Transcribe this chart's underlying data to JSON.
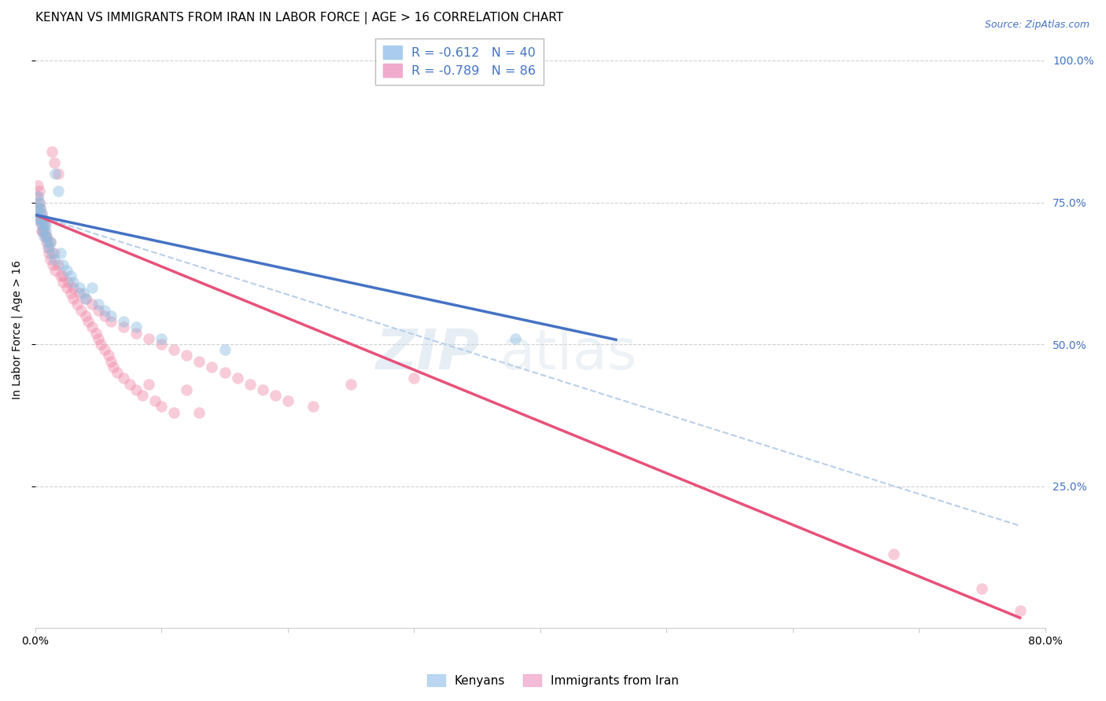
{
  "title": "KENYAN VS IMMIGRANTS FROM IRAN IN LABOR FORCE | AGE > 16 CORRELATION CHART",
  "source": "Source: ZipAtlas.com",
  "ylabel": "In Labor Force | Age > 16",
  "ytick_labels": [
    "100.0%",
    "75.0%",
    "50.0%",
    "25.0%"
  ],
  "ytick_positions": [
    1.0,
    0.75,
    0.5,
    0.25
  ],
  "xlim": [
    0.0,
    0.8
  ],
  "ylim": [
    0.0,
    1.05
  ],
  "legend_entry_blue": "R = -0.612   N = 40",
  "legend_entry_pink": "R = -0.789   N = 86",
  "blue_scatter_x": [
    0.001,
    0.002,
    0.002,
    0.003,
    0.003,
    0.004,
    0.004,
    0.005,
    0.005,
    0.006,
    0.006,
    0.007,
    0.007,
    0.008,
    0.008,
    0.009,
    0.01,
    0.011,
    0.012,
    0.013,
    0.015,
    0.016,
    0.018,
    0.02,
    0.022,
    0.025,
    0.028,
    0.03,
    0.035,
    0.038,
    0.04,
    0.045,
    0.05,
    0.055,
    0.06,
    0.07,
    0.08,
    0.1,
    0.15,
    0.38
  ],
  "blue_scatter_y": [
    0.72,
    0.74,
    0.76,
    0.73,
    0.75,
    0.72,
    0.74,
    0.71,
    0.73,
    0.72,
    0.7,
    0.71,
    0.69,
    0.71,
    0.7,
    0.69,
    0.68,
    0.67,
    0.68,
    0.66,
    0.65,
    0.8,
    0.77,
    0.66,
    0.64,
    0.63,
    0.62,
    0.61,
    0.6,
    0.59,
    0.58,
    0.6,
    0.57,
    0.56,
    0.55,
    0.54,
    0.53,
    0.51,
    0.49,
    0.51
  ],
  "pink_scatter_x": [
    0.001,
    0.002,
    0.002,
    0.003,
    0.003,
    0.004,
    0.004,
    0.005,
    0.005,
    0.006,
    0.006,
    0.007,
    0.008,
    0.009,
    0.01,
    0.011,
    0.012,
    0.013,
    0.014,
    0.015,
    0.016,
    0.018,
    0.02,
    0.022,
    0.025,
    0.028,
    0.03,
    0.033,
    0.036,
    0.04,
    0.042,
    0.045,
    0.048,
    0.05,
    0.052,
    0.055,
    0.058,
    0.06,
    0.062,
    0.065,
    0.07,
    0.075,
    0.08,
    0.085,
    0.09,
    0.095,
    0.1,
    0.11,
    0.12,
    0.13,
    0.003,
    0.005,
    0.007,
    0.009,
    0.012,
    0.015,
    0.018,
    0.022,
    0.026,
    0.03,
    0.035,
    0.04,
    0.045,
    0.05,
    0.055,
    0.06,
    0.07,
    0.08,
    0.09,
    0.1,
    0.11,
    0.12,
    0.13,
    0.14,
    0.15,
    0.16,
    0.17,
    0.18,
    0.19,
    0.2,
    0.22,
    0.25,
    0.3,
    0.68,
    0.75,
    0.78
  ],
  "pink_scatter_y": [
    0.74,
    0.76,
    0.78,
    0.75,
    0.77,
    0.72,
    0.74,
    0.71,
    0.73,
    0.7,
    0.72,
    0.71,
    0.69,
    0.68,
    0.67,
    0.66,
    0.65,
    0.84,
    0.64,
    0.82,
    0.63,
    0.8,
    0.62,
    0.61,
    0.6,
    0.59,
    0.58,
    0.57,
    0.56,
    0.55,
    0.54,
    0.53,
    0.52,
    0.51,
    0.5,
    0.49,
    0.48,
    0.47,
    0.46,
    0.45,
    0.44,
    0.43,
    0.42,
    0.41,
    0.43,
    0.4,
    0.39,
    0.38,
    0.42,
    0.38,
    0.72,
    0.7,
    0.7,
    0.69,
    0.68,
    0.66,
    0.64,
    0.62,
    0.61,
    0.6,
    0.59,
    0.58,
    0.57,
    0.56,
    0.55,
    0.54,
    0.53,
    0.52,
    0.51,
    0.5,
    0.49,
    0.48,
    0.47,
    0.46,
    0.45,
    0.44,
    0.43,
    0.42,
    0.41,
    0.4,
    0.39,
    0.43,
    0.44,
    0.13,
    0.07,
    0.03
  ],
  "blue_line_x": [
    0.0,
    0.46
  ],
  "blue_line_y": [
    0.728,
    0.508
  ],
  "pink_line_x": [
    0.0,
    0.78
  ],
  "pink_line_y": [
    0.728,
    0.018
  ],
  "dashed_line_x": [
    0.0,
    0.78
  ],
  "dashed_line_y": [
    0.728,
    0.18
  ],
  "scatter_size": 110,
  "scatter_alpha": 0.45,
  "blue_color": "#8bbde0",
  "pink_color": "#f08cac",
  "dashed_color": "#b8cfe8",
  "line_color_blue": "#4472c4",
  "line_color_pink": "#e8517a",
  "grid_color": "#d0d0d0",
  "background_color": "#ffffff",
  "title_fontsize": 11,
  "axis_label_fontsize": 10,
  "tick_fontsize": 10,
  "source_fontsize": 9,
  "watermark_fontsize": 52,
  "watermark_color": "#c8d8e8",
  "watermark_alpha": 0.45
}
